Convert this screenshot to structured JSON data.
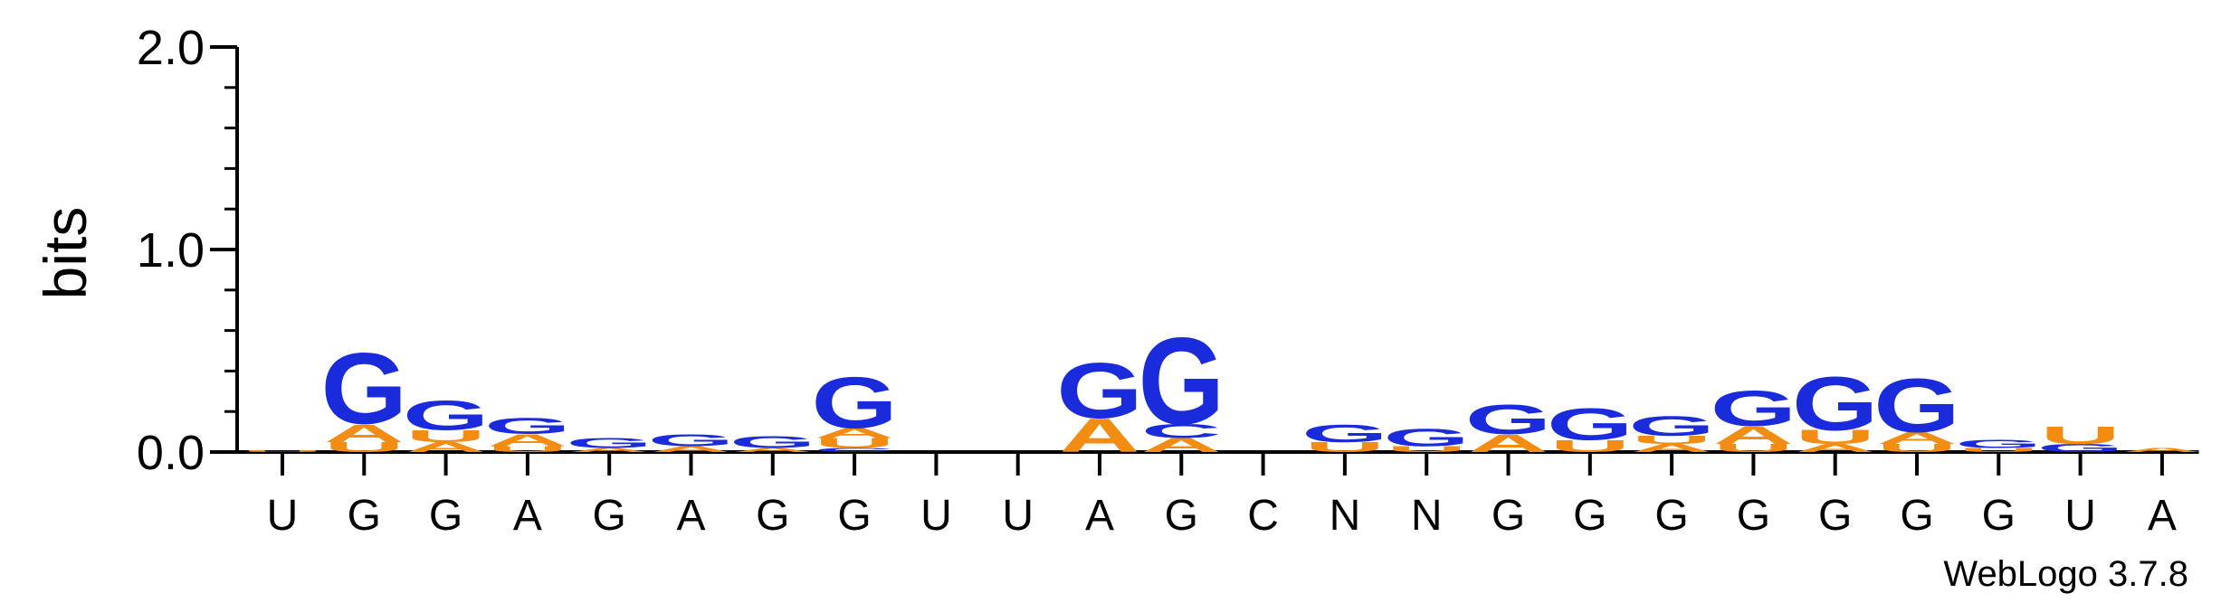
{
  "chart_data": {
    "type": "sequence-logo",
    "ylabel": "bits",
    "ylim": [
      0,
      2.0
    ],
    "yticks": [
      {
        "value": 0.0,
        "label": "0.0"
      },
      {
        "value": 1.0,
        "label": "1.0"
      },
      {
        "value": 2.0,
        "label": "2.0"
      }
    ],
    "minor_tick_step": 0.2,
    "colors": {
      "G": "#1a2bdb",
      "A": "#f28c12",
      "U": "#f28c12",
      "C": "#1a2bdb"
    },
    "positions": [
      {
        "label": "U",
        "stack": [
          {
            "letter": "U",
            "height": 0.01
          }
        ]
      },
      {
        "label": "G",
        "stack": [
          {
            "letter": "U",
            "height": 0.05
          },
          {
            "letter": "A",
            "height": 0.09
          },
          {
            "letter": "G",
            "height": 0.36
          }
        ]
      },
      {
        "label": "G",
        "stack": [
          {
            "letter": "A",
            "height": 0.05
          },
          {
            "letter": "U",
            "height": 0.06
          },
          {
            "letter": "G",
            "height": 0.15
          }
        ]
      },
      {
        "label": "A",
        "stack": [
          {
            "letter": "U",
            "height": 0.03
          },
          {
            "letter": "A",
            "height": 0.06
          },
          {
            "letter": "G",
            "height": 0.08
          }
        ]
      },
      {
        "label": "G",
        "stack": [
          {
            "letter": "A",
            "height": 0.02
          },
          {
            "letter": "G",
            "height": 0.05
          }
        ]
      },
      {
        "label": "A",
        "stack": [
          {
            "letter": "A",
            "height": 0.03
          },
          {
            "letter": "G",
            "height": 0.06
          }
        ]
      },
      {
        "label": "G",
        "stack": [
          {
            "letter": "A",
            "height": 0.02
          },
          {
            "letter": "G",
            "height": 0.06
          }
        ]
      },
      {
        "label": "G",
        "stack": [
          {
            "letter": "C",
            "height": 0.02
          },
          {
            "letter": "U",
            "height": 0.05
          },
          {
            "letter": "A",
            "height": 0.05
          },
          {
            "letter": "G",
            "height": 0.26
          }
        ]
      },
      {
        "label": "U",
        "stack": []
      },
      {
        "label": "U",
        "stack": []
      },
      {
        "label": "A",
        "stack": [
          {
            "letter": "A",
            "height": 0.17
          },
          {
            "letter": "G",
            "height": 0.28
          }
        ]
      },
      {
        "label": "G",
        "stack": [
          {
            "letter": "A",
            "height": 0.07
          },
          {
            "letter": "C",
            "height": 0.07
          },
          {
            "letter": "G",
            "height": 0.44
          }
        ]
      },
      {
        "label": "C",
        "stack": []
      },
      {
        "label": "N",
        "stack": [
          {
            "letter": "U",
            "height": 0.05
          },
          {
            "letter": "G",
            "height": 0.09
          }
        ]
      },
      {
        "label": "N",
        "stack": [
          {
            "letter": "U",
            "height": 0.03
          },
          {
            "letter": "G",
            "height": 0.09
          }
        ]
      },
      {
        "label": "G",
        "stack": [
          {
            "letter": "A",
            "height": 0.09
          },
          {
            "letter": "G",
            "height": 0.15
          }
        ]
      },
      {
        "label": "G",
        "stack": [
          {
            "letter": "U",
            "height": 0.06
          },
          {
            "letter": "G",
            "height": 0.16
          }
        ]
      },
      {
        "label": "G",
        "stack": [
          {
            "letter": "A",
            "height": 0.04
          },
          {
            "letter": "U",
            "height": 0.04
          },
          {
            "letter": "G",
            "height": 0.1
          }
        ]
      },
      {
        "label": "G",
        "stack": [
          {
            "letter": "U",
            "height": 0.04
          },
          {
            "letter": "A",
            "height": 0.09
          },
          {
            "letter": "G",
            "height": 0.18
          }
        ]
      },
      {
        "label": "G",
        "stack": [
          {
            "letter": "A",
            "height": 0.04
          },
          {
            "letter": "U",
            "height": 0.07
          },
          {
            "letter": "G",
            "height": 0.27
          }
        ]
      },
      {
        "label": "G",
        "stack": [
          {
            "letter": "U",
            "height": 0.04
          },
          {
            "letter": "A",
            "height": 0.06
          },
          {
            "letter": "G",
            "height": 0.27
          }
        ]
      },
      {
        "label": "G",
        "stack": [
          {
            "letter": "U",
            "height": 0.02
          },
          {
            "letter": "G",
            "height": 0.04
          }
        ]
      },
      {
        "label": "U",
        "stack": [
          {
            "letter": "G",
            "height": 0.04
          },
          {
            "letter": "U",
            "height": 0.09
          }
        ]
      },
      {
        "label": "A",
        "stack": [
          {
            "letter": "A",
            "height": 0.02
          }
        ]
      }
    ]
  },
  "footer": {
    "credit": "WebLogo 3.7.8"
  }
}
